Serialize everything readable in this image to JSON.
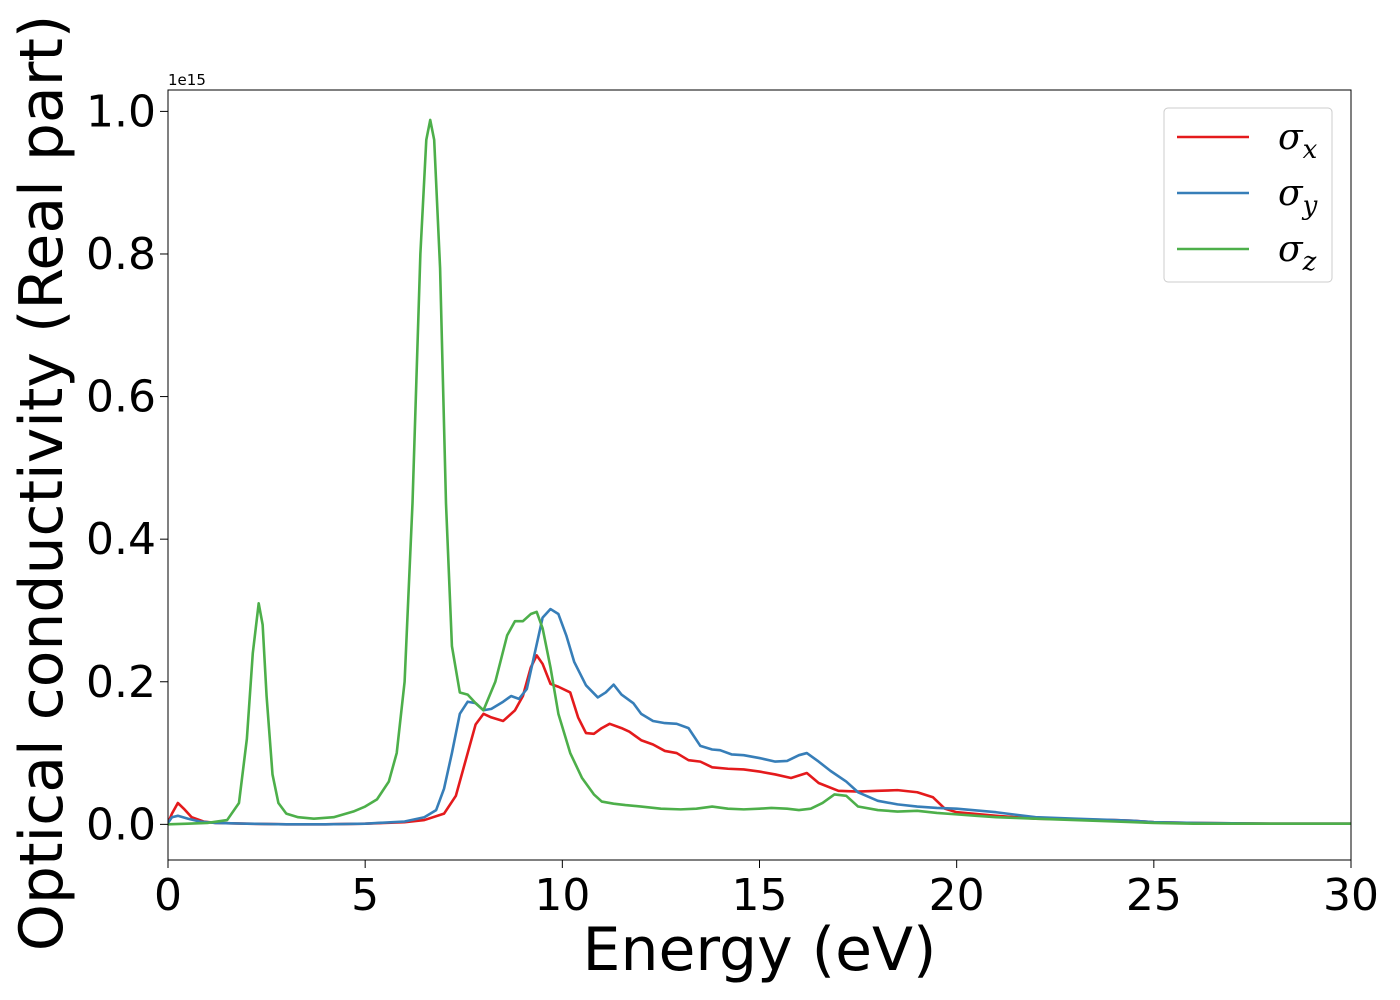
{
  "chart_data": {
    "type": "line",
    "xlabel": "Energy (eV)",
    "ylabel": "Optical conductivity (Real part)",
    "y_offset_text": "1e15",
    "y_scale_factor": 1000000000000000.0,
    "xlim": [
      0,
      30
    ],
    "ylim": [
      -0.05,
      1.03
    ],
    "x_ticks": [
      0,
      5,
      10,
      15,
      20,
      25,
      30
    ],
    "x_tick_labels": [
      "0",
      "5",
      "10",
      "15",
      "20",
      "25",
      "30"
    ],
    "y_ticks": [
      0.0,
      0.2,
      0.4,
      0.6,
      0.8,
      1.0
    ],
    "y_tick_labels": [
      "0.0",
      "0.2",
      "0.4",
      "0.6",
      "0.8",
      "1.0"
    ],
    "grid": false,
    "legend_position": "top-right",
    "series": [
      {
        "name": "σx",
        "legend": {
          "base": "σ",
          "sub": "x"
        },
        "color": "#e41a1c",
        "x": [
          0,
          0.1,
          0.25,
          0.4,
          0.6,
          0.9,
          1.2,
          2,
          3,
          4,
          5,
          6,
          6.5,
          7,
          7.3,
          7.6,
          7.8,
          8.0,
          8.2,
          8.5,
          8.8,
          9.0,
          9.2,
          9.35,
          9.5,
          9.7,
          9.9,
          10.2,
          10.4,
          10.6,
          10.8,
          11.0,
          11.2,
          11.5,
          11.7,
          12.0,
          12.3,
          12.6,
          12.9,
          13.2,
          13.5,
          13.8,
          14.2,
          14.6,
          15.0,
          15.4,
          15.8,
          16.2,
          16.5,
          17.0,
          17.5,
          18.0,
          18.5,
          19.0,
          19.4,
          19.7,
          20.0,
          21.0,
          22.0,
          23.0,
          24.0,
          24.5,
          25.0,
          26.0,
          28.0,
          30.0
        ],
        "y": [
          0.002,
          0.015,
          0.03,
          0.022,
          0.01,
          0.004,
          0.002,
          0.001,
          0.0,
          0.0,
          0.001,
          0.003,
          0.006,
          0.015,
          0.04,
          0.1,
          0.14,
          0.155,
          0.15,
          0.145,
          0.16,
          0.18,
          0.22,
          0.237,
          0.225,
          0.197,
          0.193,
          0.185,
          0.15,
          0.128,
          0.127,
          0.135,
          0.141,
          0.135,
          0.13,
          0.118,
          0.112,
          0.103,
          0.1,
          0.09,
          0.088,
          0.08,
          0.078,
          0.077,
          0.074,
          0.07,
          0.065,
          0.072,
          0.058,
          0.047,
          0.046,
          0.047,
          0.048,
          0.045,
          0.038,
          0.022,
          0.017,
          0.012,
          0.008,
          0.007,
          0.006,
          0.005,
          0.003,
          0.002,
          0.001,
          0.001
        ]
      },
      {
        "name": "σy",
        "legend": {
          "base": "σ",
          "sub": "y"
        },
        "color": "#377eb8",
        "x": [
          0,
          0.1,
          0.25,
          0.5,
          0.8,
          1.2,
          2,
          3,
          4,
          5,
          6,
          6.5,
          6.8,
          7.0,
          7.2,
          7.4,
          7.6,
          7.8,
          8.0,
          8.2,
          8.5,
          8.7,
          8.9,
          9.1,
          9.3,
          9.5,
          9.7,
          9.9,
          10.1,
          10.3,
          10.6,
          10.9,
          11.1,
          11.3,
          11.5,
          11.8,
          12.0,
          12.3,
          12.6,
          12.9,
          13.2,
          13.5,
          13.8,
          14.0,
          14.3,
          14.6,
          15.0,
          15.4,
          15.7,
          16.0,
          16.2,
          16.5,
          16.8,
          17.2,
          17.5,
          18.0,
          18.5,
          19.0,
          19.5,
          20.0,
          21.0,
          22.0,
          23.0,
          24.0,
          24.5,
          25.0,
          26.0,
          28.0,
          30.0
        ],
        "y": [
          0.002,
          0.01,
          0.012,
          0.008,
          0.004,
          0.002,
          0.001,
          0.0,
          0.0,
          0.001,
          0.004,
          0.01,
          0.02,
          0.05,
          0.1,
          0.155,
          0.172,
          0.17,
          0.16,
          0.162,
          0.172,
          0.18,
          0.176,
          0.19,
          0.24,
          0.29,
          0.302,
          0.295,
          0.265,
          0.228,
          0.195,
          0.178,
          0.185,
          0.196,
          0.182,
          0.17,
          0.155,
          0.145,
          0.142,
          0.141,
          0.135,
          0.11,
          0.105,
          0.104,
          0.098,
          0.097,
          0.093,
          0.088,
          0.089,
          0.097,
          0.1,
          0.088,
          0.075,
          0.06,
          0.045,
          0.033,
          0.028,
          0.025,
          0.023,
          0.022,
          0.017,
          0.01,
          0.008,
          0.006,
          0.005,
          0.003,
          0.002,
          0.001,
          0.001
        ]
      },
      {
        "name": "σz",
        "legend": {
          "base": "σ",
          "sub": "z"
        },
        "color": "#4daf4a",
        "x": [
          0,
          0.5,
          1.0,
          1.5,
          1.8,
          2.0,
          2.15,
          2.3,
          2.4,
          2.5,
          2.65,
          2.8,
          3.0,
          3.3,
          3.7,
          4.2,
          4.7,
          5.0,
          5.3,
          5.6,
          5.8,
          6.0,
          6.2,
          6.4,
          6.55,
          6.65,
          6.75,
          6.9,
          7.05,
          7.2,
          7.4,
          7.6,
          7.8,
          8.0,
          8.3,
          8.6,
          8.8,
          9.0,
          9.2,
          9.35,
          9.5,
          9.7,
          9.9,
          10.2,
          10.5,
          10.8,
          11.0,
          11.3,
          11.6,
          12.0,
          12.5,
          13.0,
          13.4,
          13.8,
          14.2,
          14.6,
          15.0,
          15.3,
          15.7,
          16.0,
          16.3,
          16.6,
          16.9,
          17.2,
          17.5,
          18.0,
          18.5,
          19.0,
          19.5,
          20.0,
          20.5,
          21.0,
          21.5,
          22.0,
          23.0,
          24.0,
          25.0,
          26.0,
          28.0,
          30.0
        ],
        "y": [
          0.0,
          0.001,
          0.002,
          0.006,
          0.03,
          0.12,
          0.24,
          0.31,
          0.28,
          0.18,
          0.07,
          0.03,
          0.015,
          0.01,
          0.008,
          0.01,
          0.018,
          0.025,
          0.035,
          0.06,
          0.1,
          0.2,
          0.45,
          0.8,
          0.96,
          0.988,
          0.96,
          0.78,
          0.45,
          0.25,
          0.185,
          0.182,
          0.17,
          0.16,
          0.2,
          0.265,
          0.285,
          0.285,
          0.295,
          0.298,
          0.275,
          0.22,
          0.155,
          0.1,
          0.065,
          0.042,
          0.032,
          0.029,
          0.027,
          0.025,
          0.022,
          0.021,
          0.022,
          0.025,
          0.022,
          0.021,
          0.022,
          0.023,
          0.022,
          0.02,
          0.022,
          0.03,
          0.042,
          0.04,
          0.025,
          0.02,
          0.018,
          0.019,
          0.016,
          0.014,
          0.012,
          0.01,
          0.009,
          0.008,
          0.006,
          0.004,
          0.002,
          0.001,
          0.001,
          0.001
        ]
      }
    ]
  }
}
